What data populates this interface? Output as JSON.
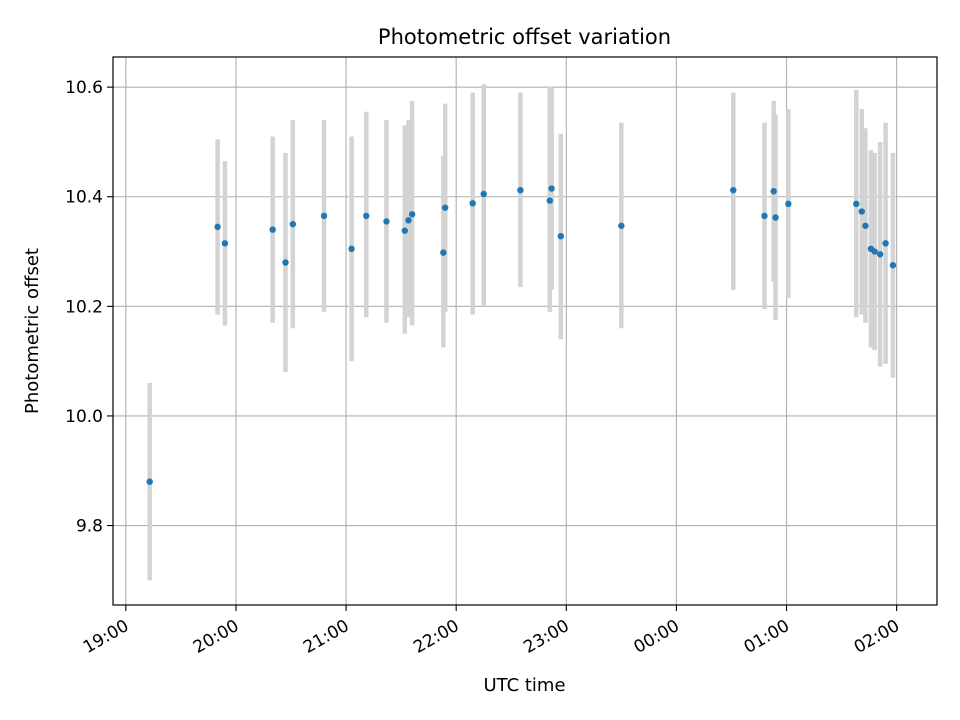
{
  "chart_data": {
    "type": "scatter",
    "title": "Photometric offset variation",
    "xlabel": "UTC time",
    "ylabel": "Photometric offset",
    "x_unit": "UTC time (HH:MM), spanning midnight",
    "xlim": [
      "18:53",
      "02:22"
    ],
    "ylim": [
      9.655,
      10.655
    ],
    "grid": true,
    "x_ticks": [
      "19:00",
      "20:00",
      "21:00",
      "22:00",
      "23:00",
      "00:00",
      "01:00",
      "02:00"
    ],
    "y_ticks": [
      "9.8",
      "10.0",
      "10.2",
      "10.4",
      "10.6"
    ],
    "colors": {
      "point": "#1f77b4",
      "errorbar": "#d3d3d3",
      "grid": "#b0b0b0"
    },
    "series": [
      {
        "points": [
          {
            "x": "19:13",
            "y": 9.88,
            "ylow": 9.7,
            "yhigh": 10.06
          },
          {
            "x": "19:50",
            "y": 10.345,
            "ylow": 10.185,
            "yhigh": 10.505
          },
          {
            "x": "19:54",
            "y": 10.315,
            "ylow": 10.165,
            "yhigh": 10.465
          },
          {
            "x": "20:20",
            "y": 10.34,
            "ylow": 10.17,
            "yhigh": 10.51
          },
          {
            "x": "20:27",
            "y": 10.28,
            "ylow": 10.08,
            "yhigh": 10.48
          },
          {
            "x": "20:31",
            "y": 10.35,
            "ylow": 10.16,
            "yhigh": 10.54
          },
          {
            "x": "20:48",
            "y": 10.365,
            "ylow": 10.19,
            "yhigh": 10.54
          },
          {
            "x": "21:03",
            "y": 10.305,
            "ylow": 10.1,
            "yhigh": 10.51
          },
          {
            "x": "21:11",
            "y": 10.365,
            "ylow": 10.18,
            "yhigh": 10.555
          },
          {
            "x": "21:22",
            "y": 10.355,
            "ylow": 10.17,
            "yhigh": 10.54
          },
          {
            "x": "21:32",
            "y": 10.338,
            "ylow": 10.15,
            "yhigh": 10.53
          },
          {
            "x": "21:34",
            "y": 10.357,
            "ylow": 10.18,
            "yhigh": 10.54
          },
          {
            "x": "21:36",
            "y": 10.368,
            "ylow": 10.165,
            "yhigh": 10.575
          },
          {
            "x": "21:53",
            "y": 10.298,
            "ylow": 10.125,
            "yhigh": 10.475
          },
          {
            "x": "21:54",
            "y": 10.38,
            "ylow": 10.19,
            "yhigh": 10.57
          },
          {
            "x": "22:09",
            "y": 10.388,
            "ylow": 10.185,
            "yhigh": 10.59
          },
          {
            "x": "22:15",
            "y": 10.405,
            "ylow": 10.2,
            "yhigh": 10.605
          },
          {
            "x": "22:35",
            "y": 10.412,
            "ylow": 10.235,
            "yhigh": 10.59
          },
          {
            "x": "22:51",
            "y": 10.393,
            "ylow": 10.19,
            "yhigh": 10.6
          },
          {
            "x": "22:52",
            "y": 10.415,
            "ylow": 10.23,
            "yhigh": 10.6
          },
          {
            "x": "22:57",
            "y": 10.328,
            "ylow": 10.14,
            "yhigh": 10.515
          },
          {
            "x": "23:30",
            "y": 10.347,
            "ylow": 10.16,
            "yhigh": 10.535
          },
          {
            "x": "00:31",
            "y": 10.412,
            "ylow": 10.23,
            "yhigh": 10.59
          },
          {
            "x": "00:48",
            "y": 10.365,
            "ylow": 10.195,
            "yhigh": 10.535
          },
          {
            "x": "00:53",
            "y": 10.41,
            "ylow": 10.245,
            "yhigh": 10.575
          },
          {
            "x": "00:54",
            "y": 10.362,
            "ylow": 10.175,
            "yhigh": 10.55
          },
          {
            "x": "01:01",
            "y": 10.387,
            "ylow": 10.215,
            "yhigh": 10.56
          },
          {
            "x": "01:38",
            "y": 10.387,
            "ylow": 10.18,
            "yhigh": 10.595
          },
          {
            "x": "01:41",
            "y": 10.373,
            "ylow": 10.185,
            "yhigh": 10.56
          },
          {
            "x": "01:43",
            "y": 10.347,
            "ylow": 10.17,
            "yhigh": 10.525
          },
          {
            "x": "01:46",
            "y": 10.305,
            "ylow": 10.125,
            "yhigh": 10.485
          },
          {
            "x": "01:48",
            "y": 10.3,
            "ylow": 10.12,
            "yhigh": 10.48
          },
          {
            "x": "01:51",
            "y": 10.295,
            "ylow": 10.09,
            "yhigh": 10.5
          },
          {
            "x": "01:54",
            "y": 10.315,
            "ylow": 10.095,
            "yhigh": 10.535
          },
          {
            "x": "01:58",
            "y": 10.275,
            "ylow": 10.07,
            "yhigh": 10.48
          }
        ]
      }
    ]
  }
}
